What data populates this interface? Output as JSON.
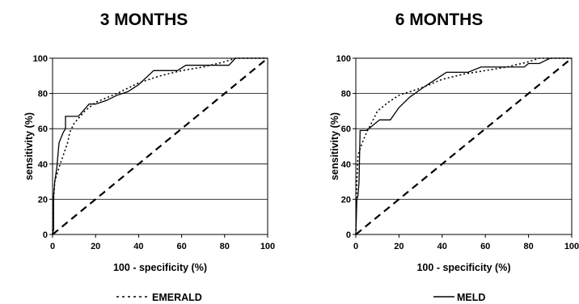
{
  "chart_data": [
    {
      "type": "line",
      "title": "3 MONTHS",
      "xlabel": "100 - specificity (%)",
      "ylabel": "sensitivity (%)",
      "xlim": [
        0,
        100
      ],
      "ylim": [
        0,
        100
      ],
      "xticks": [
        "0",
        "20",
        "40",
        "60",
        "80",
        "100"
      ],
      "yticks": [
        "0",
        "20",
        "40",
        "60",
        "80",
        "100"
      ],
      "grid": "horizontal",
      "series": [
        {
          "name": "MELD",
          "style": "solid",
          "points": [
            [
              0,
              0
            ],
            [
              0.5,
              3
            ],
            [
              0.5,
              22
            ],
            [
              1,
              30
            ],
            [
              2,
              38
            ],
            [
              3,
              52
            ],
            [
              4,
              55
            ],
            [
              5,
              58
            ],
            [
              6,
              60
            ],
            [
              6,
              67
            ],
            [
              12,
              67
            ],
            [
              17,
              74
            ],
            [
              20,
              74
            ],
            [
              25,
              76
            ],
            [
              30,
              79
            ],
            [
              35,
              81
            ],
            [
              40,
              85
            ],
            [
              47,
              93
            ],
            [
              55,
              93
            ],
            [
              58,
              93
            ],
            [
              62,
              96
            ],
            [
              82,
              96
            ],
            [
              85,
              100
            ],
            [
              100,
              100
            ]
          ]
        },
        {
          "name": "EMERALD",
          "style": "dotted",
          "points": [
            [
              0,
              0
            ],
            [
              0.5,
              20
            ],
            [
              1,
              30
            ],
            [
              3,
              38
            ],
            [
              5,
              45
            ],
            [
              7,
              52
            ],
            [
              8,
              58
            ],
            [
              10,
              63
            ],
            [
              15,
              70
            ],
            [
              20,
              75
            ],
            [
              30,
              80
            ],
            [
              40,
              86
            ],
            [
              50,
              90
            ],
            [
              60,
              93
            ],
            [
              70,
              95
            ],
            [
              80,
              98
            ],
            [
              85,
              100
            ],
            [
              100,
              100
            ]
          ]
        },
        {
          "name": "reference",
          "style": "dashed",
          "points": [
            [
              0,
              0
            ],
            [
              100,
              100
            ]
          ]
        }
      ]
    },
    {
      "type": "line",
      "title": "6 MONTHS",
      "xlabel": "100 - specificity (%)",
      "ylabel": "sensitivity (%)",
      "xlim": [
        0,
        100
      ],
      "ylim": [
        0,
        100
      ],
      "xticks": [
        "0",
        "20",
        "40",
        "60",
        "80",
        "100"
      ],
      "yticks": [
        "0",
        "20",
        "40",
        "60",
        "80",
        "100"
      ],
      "grid": "horizontal",
      "series": [
        {
          "name": "MELD",
          "style": "solid",
          "points": [
            [
              0,
              0
            ],
            [
              0.5,
              20
            ],
            [
              1,
              22
            ],
            [
              1.5,
              30
            ],
            [
              2,
              59
            ],
            [
              5,
              59
            ],
            [
              8,
              62
            ],
            [
              11,
              65
            ],
            [
              16,
              65
            ],
            [
              20,
              72
            ],
            [
              25,
              78
            ],
            [
              32,
              84
            ],
            [
              42,
              92
            ],
            [
              52,
              92
            ],
            [
              58,
              95
            ],
            [
              78,
              95
            ],
            [
              80,
              97
            ],
            [
              85,
              97
            ],
            [
              90,
              100
            ],
            [
              100,
              100
            ]
          ]
        },
        {
          "name": "EMERALD",
          "style": "dotted",
          "points": [
            [
              0,
              0
            ],
            [
              0.5,
              30
            ],
            [
              1,
              45
            ],
            [
              3,
              52
            ],
            [
              5,
              58
            ],
            [
              8,
              65
            ],
            [
              10,
              70
            ],
            [
              15,
              75
            ],
            [
              20,
              79
            ],
            [
              30,
              83
            ],
            [
              40,
              88
            ],
            [
              50,
              91
            ],
            [
              60,
              93
            ],
            [
              70,
              95
            ],
            [
              80,
              98
            ],
            [
              85,
              100
            ],
            [
              100,
              100
            ]
          ]
        },
        {
          "name": "reference",
          "style": "dashed",
          "points": [
            [
              0,
              0
            ],
            [
              100,
              100
            ]
          ]
        }
      ]
    }
  ],
  "legend": [
    {
      "label": "EMERALD",
      "style": "dotted"
    },
    {
      "label": "MELD",
      "style": "solid"
    }
  ]
}
